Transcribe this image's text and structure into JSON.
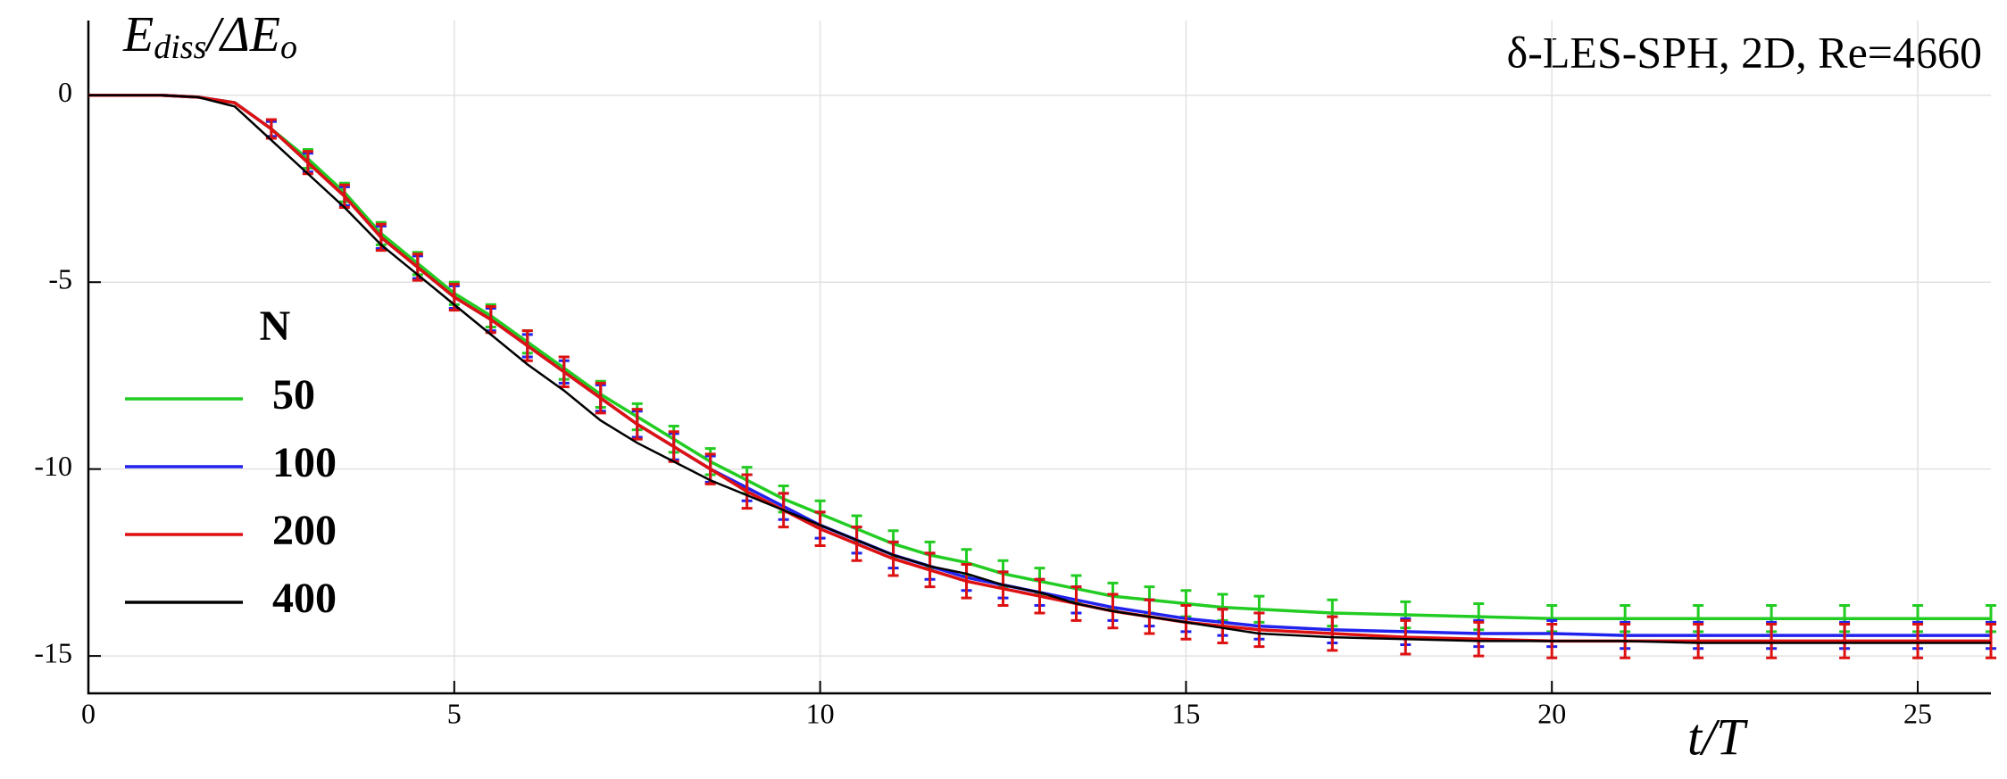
{
  "chart_data": {
    "type": "line",
    "title": "δ-LES-SPH, 2D, Re=4660",
    "y_label_parts": [
      "E",
      "diss",
      "/ΔE",
      "o"
    ],
    "x_label": "t/T",
    "legend_title": "N",
    "legend_position": "left",
    "grid": true,
    "xlim": [
      0,
      26
    ],
    "ylim": [
      -16,
      2
    ],
    "xticks": [
      0,
      5,
      10,
      15,
      20,
      25
    ],
    "yticks": [
      0,
      -5,
      -10,
      -15
    ],
    "x": [
      0,
      1,
      1.5,
      2,
      2.5,
      3,
      3.5,
      4,
      4.5,
      5,
      5.5,
      6,
      6.5,
      7,
      7.5,
      8,
      8.5,
      9,
      9.5,
      10,
      10.5,
      11,
      11.5,
      12,
      12.5,
      13,
      13.5,
      14,
      14.5,
      15,
      15.5,
      16,
      17,
      18,
      19,
      20,
      21,
      22,
      23,
      24,
      25,
      26
    ],
    "series": [
      {
        "name": "50",
        "color": "#22cc22",
        "values": [
          0,
          0,
          -0.05,
          -0.2,
          -0.9,
          -1.7,
          -2.6,
          -3.7,
          -4.5,
          -5.3,
          -5.9,
          -6.6,
          -7.3,
          -8.0,
          -8.6,
          -9.2,
          -9.8,
          -10.3,
          -10.8,
          -11.2,
          -11.6,
          -12.0,
          -12.3,
          -12.5,
          -12.8,
          -13.0,
          -13.2,
          -13.4,
          -13.5,
          -13.6,
          -13.7,
          -13.75,
          -13.85,
          -13.9,
          -13.95,
          -14.0,
          -14.0,
          -14.0,
          -14.0,
          -14.0,
          -14.0,
          -14.0
        ],
        "errors": [
          0,
          0,
          0,
          0,
          0.2,
          0.25,
          0.25,
          0.3,
          0.3,
          0.3,
          0.3,
          0.3,
          0.3,
          0.35,
          0.35,
          0.35,
          0.35,
          0.35,
          0.35,
          0.35,
          0.35,
          0.35,
          0.35,
          0.35,
          0.35,
          0.35,
          0.35,
          0.35,
          0.35,
          0.35,
          0.35,
          0.35,
          0.35,
          0.35,
          0.35,
          0.35,
          0.35,
          0.35,
          0.35,
          0.35,
          0.35,
          0.35
        ]
      },
      {
        "name": "100",
        "color": "#2222ee",
        "values": [
          0,
          0,
          -0.05,
          -0.2,
          -0.9,
          -1.8,
          -2.7,
          -3.8,
          -4.6,
          -5.4,
          -6.0,
          -6.7,
          -7.4,
          -8.1,
          -8.8,
          -9.4,
          -10.0,
          -10.5,
          -11.0,
          -11.5,
          -11.9,
          -12.3,
          -12.6,
          -12.9,
          -13.1,
          -13.3,
          -13.5,
          -13.7,
          -13.85,
          -14.0,
          -14.1,
          -14.2,
          -14.3,
          -14.35,
          -14.4,
          -14.4,
          -14.45,
          -14.45,
          -14.45,
          -14.45,
          -14.45,
          -14.45
        ],
        "errors": [
          0,
          0,
          0,
          0,
          0.2,
          0.25,
          0.25,
          0.3,
          0.3,
          0.3,
          0.3,
          0.3,
          0.3,
          0.35,
          0.35,
          0.35,
          0.35,
          0.35,
          0.35,
          0.35,
          0.35,
          0.35,
          0.35,
          0.35,
          0.35,
          0.35,
          0.35,
          0.35,
          0.35,
          0.35,
          0.35,
          0.35,
          0.35,
          0.35,
          0.35,
          0.35,
          0.35,
          0.35,
          0.35,
          0.35,
          0.35,
          0.35
        ]
      },
      {
        "name": "200",
        "color": "#dd1111",
        "values": [
          0,
          0,
          -0.05,
          -0.2,
          -0.9,
          -1.8,
          -2.7,
          -3.8,
          -4.6,
          -5.4,
          -6.0,
          -6.7,
          -7.4,
          -8.1,
          -8.8,
          -9.4,
          -10.0,
          -10.6,
          -11.1,
          -11.6,
          -12.0,
          -12.4,
          -12.7,
          -13.0,
          -13.2,
          -13.4,
          -13.6,
          -13.8,
          -13.95,
          -14.1,
          -14.2,
          -14.3,
          -14.4,
          -14.5,
          -14.55,
          -14.6,
          -14.6,
          -14.6,
          -14.6,
          -14.6,
          -14.6,
          -14.6
        ],
        "errors": [
          0,
          0,
          0,
          0,
          0.25,
          0.3,
          0.3,
          0.35,
          0.35,
          0.35,
          0.35,
          0.4,
          0.4,
          0.4,
          0.4,
          0.4,
          0.4,
          0.45,
          0.45,
          0.45,
          0.45,
          0.45,
          0.45,
          0.45,
          0.45,
          0.45,
          0.45,
          0.45,
          0.45,
          0.45,
          0.45,
          0.45,
          0.45,
          0.45,
          0.45,
          0.45,
          0.45,
          0.45,
          0.45,
          0.45,
          0.45,
          0.45
        ]
      },
      {
        "name": "400",
        "color": "#000000",
        "values": [
          0,
          0,
          -0.05,
          -0.3,
          -1.2,
          -2.1,
          -3.0,
          -4.0,
          -4.8,
          -5.6,
          -6.4,
          -7.2,
          -7.9,
          -8.7,
          -9.3,
          -9.8,
          -10.3,
          -10.7,
          -11.1,
          -11.5,
          -11.9,
          -12.3,
          -12.6,
          -12.8,
          -13.1,
          -13.3,
          -13.6,
          -13.8,
          -13.95,
          -14.1,
          -14.25,
          -14.4,
          -14.5,
          -14.55,
          -14.6,
          -14.6,
          -14.6,
          -14.65,
          -14.65,
          -14.65,
          -14.65,
          -14.65
        ]
      }
    ]
  }
}
